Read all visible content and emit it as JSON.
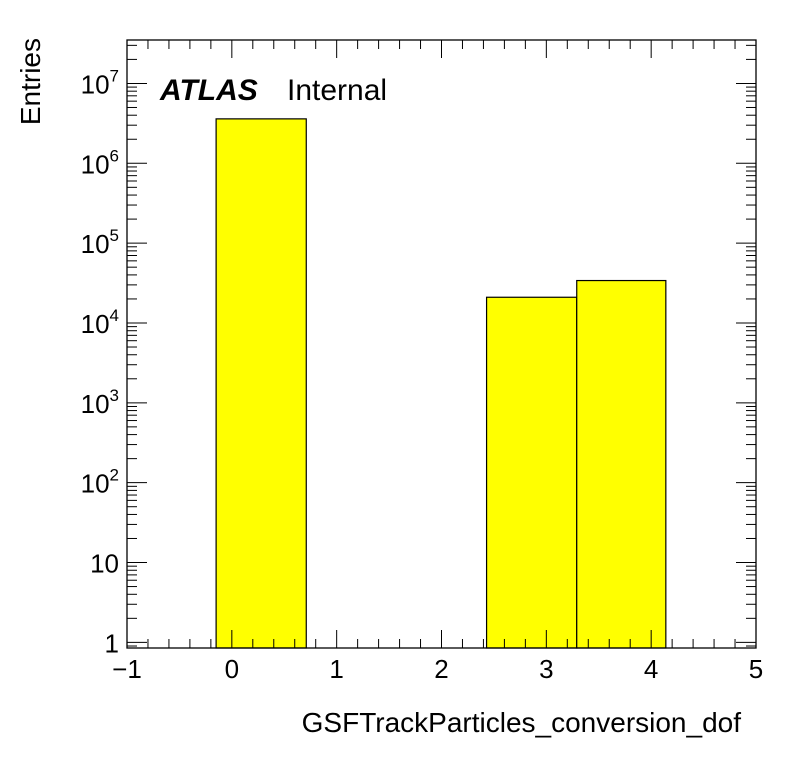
{
  "chart_data": {
    "type": "bar",
    "bins": [
      {
        "x_low": -0.15,
        "x_high": 0.71,
        "value": 3600000
      },
      {
        "x_low": 2.43,
        "x_high": 3.29,
        "value": 21000
      },
      {
        "x_low": 3.29,
        "x_high": 4.14,
        "value": 34000
      }
    ],
    "xlabel": "GSFTrackParticles_conversion_dof",
    "ylabel": "Entries",
    "xlim": [
      -1,
      5
    ],
    "ylim": [
      0.85,
      35000000
    ],
    "yscale": "log",
    "x_ticks": [
      "−1",
      "0",
      "1",
      "2",
      "3",
      "4",
      "5"
    ],
    "y_ticks": [
      {
        "value": 1,
        "base": "1",
        "exp": ""
      },
      {
        "value": 10,
        "base": "10",
        "exp": ""
      },
      {
        "value": 100,
        "base": "10",
        "exp": "2"
      },
      {
        "value": 1000,
        "base": "10",
        "exp": "3"
      },
      {
        "value": 10000,
        "base": "10",
        "exp": "4"
      },
      {
        "value": 100000,
        "base": "10",
        "exp": "5"
      },
      {
        "value": 1000000,
        "base": "10",
        "exp": "6"
      },
      {
        "value": 10000000,
        "base": "10",
        "exp": "7"
      }
    ],
    "fill_color": "#ffff00",
    "edge_color": "#000000",
    "grid": false
  },
  "label": {
    "experiment": "ATLAS",
    "status": "Internal"
  }
}
